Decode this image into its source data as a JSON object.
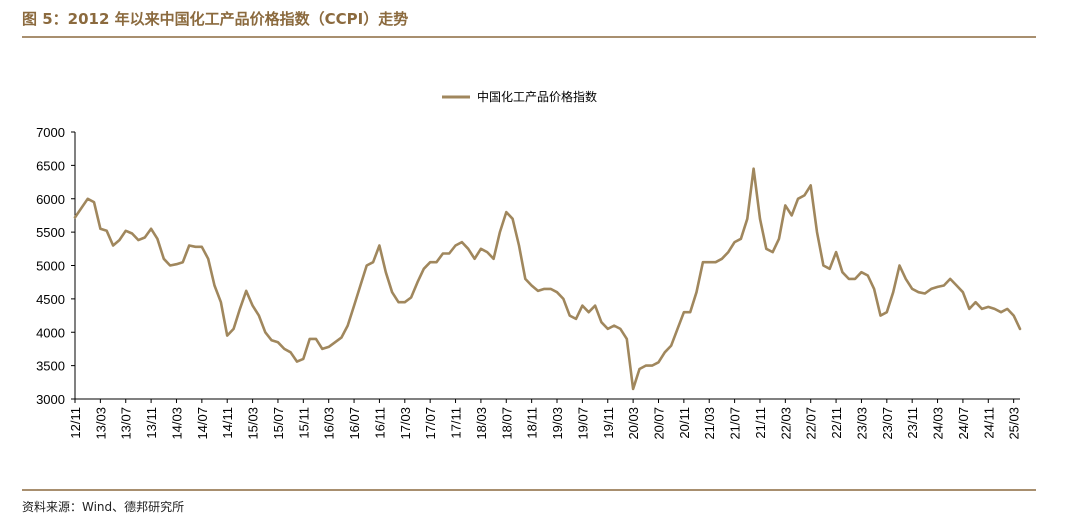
{
  "figure": {
    "title": "图 5：2012 年以来中国化工产品价格指数（CCPI）走势",
    "source": "资料来源：Wind、德邦研究所"
  },
  "colors": {
    "series": "#a0875d",
    "title": "#8b6a3e",
    "rule": "#a88f6f"
  },
  "chart_data": {
    "type": "line",
    "title": "",
    "xlabel": "",
    "ylabel": "",
    "ylim": [
      3000,
      7000
    ],
    "yticks": [
      3000,
      3500,
      4000,
      4500,
      5000,
      5500,
      6000,
      6500,
      7000
    ],
    "xticks": [
      "12/11",
      "13/03",
      "13/07",
      "13/11",
      "14/03",
      "14/07",
      "14/11",
      "15/03",
      "15/07",
      "15/11",
      "16/03",
      "16/07",
      "16/11",
      "17/03",
      "17/07",
      "17/11",
      "18/03",
      "18/07",
      "18/11",
      "19/03",
      "19/07",
      "19/11",
      "20/03",
      "20/07",
      "20/11",
      "21/03",
      "21/07",
      "21/11",
      "22/03",
      "22/07",
      "22/11",
      "23/03",
      "23/07",
      "23/11",
      "24/03",
      "24/07",
      "24/11",
      "25/03"
    ],
    "grid": false,
    "legend_position": "top-center",
    "series": [
      {
        "name": "中国化工产品价格指数",
        "x": [
          "2012-11",
          "2013-01",
          "2013-02",
          "2013-03",
          "2013-04",
          "2013-05",
          "2013-06",
          "2013-07",
          "2013-08",
          "2013-09",
          "2013-10",
          "2013-11",
          "2013-12",
          "2014-01",
          "2014-02",
          "2014-03",
          "2014-04",
          "2014-05",
          "2014-06",
          "2014-07",
          "2014-08",
          "2014-09",
          "2014-10",
          "2014-11",
          "2014-12",
          "2015-01",
          "2015-02",
          "2015-03",
          "2015-04",
          "2015-05",
          "2015-06",
          "2015-07",
          "2015-08",
          "2015-09",
          "2015-10",
          "2015-11",
          "2015-12",
          "2016-01",
          "2016-02",
          "2016-03",
          "2016-04",
          "2016-05",
          "2016-06",
          "2016-07",
          "2016-08",
          "2016-09",
          "2016-10",
          "2016-11",
          "2016-12",
          "2017-01",
          "2017-02",
          "2017-03",
          "2017-04",
          "2017-05",
          "2017-06",
          "2017-07",
          "2017-08",
          "2017-09",
          "2017-10",
          "2017-11",
          "2017-12",
          "2018-01",
          "2018-02",
          "2018-03",
          "2018-04",
          "2018-05",
          "2018-06",
          "2018-07",
          "2018-08",
          "2018-09",
          "2018-10",
          "2018-11",
          "2018-12",
          "2019-01",
          "2019-02",
          "2019-03",
          "2019-04",
          "2019-05",
          "2019-06",
          "2019-07",
          "2019-08",
          "2019-09",
          "2019-10",
          "2019-11",
          "2019-12",
          "2020-01",
          "2020-02",
          "2020-03",
          "2020-04",
          "2020-05",
          "2020-06",
          "2020-07",
          "2020-08",
          "2020-09",
          "2020-10",
          "2020-11",
          "2020-12",
          "2021-01",
          "2021-02",
          "2021-03",
          "2021-04",
          "2021-05",
          "2021-06",
          "2021-07",
          "2021-08",
          "2021-09",
          "2021-10",
          "2021-11",
          "2021-12",
          "2022-01",
          "2022-02",
          "2022-03",
          "2022-04",
          "2022-05",
          "2022-06",
          "2022-07",
          "2022-08",
          "2022-09",
          "2022-10",
          "2022-11",
          "2022-12",
          "2023-01",
          "2023-02",
          "2023-03",
          "2023-04",
          "2023-05",
          "2023-06",
          "2023-07",
          "2023-08",
          "2023-09",
          "2023-10",
          "2023-11",
          "2023-12",
          "2024-01",
          "2024-02",
          "2024-03",
          "2024-04",
          "2024-05",
          "2024-06",
          "2024-07",
          "2024-08",
          "2024-09",
          "2024-10",
          "2024-11",
          "2024-12",
          "2025-01",
          "2025-02",
          "2025-03",
          "2025-04"
        ],
        "values": [
          5720,
          6000,
          5950,
          5550,
          5520,
          5300,
          5380,
          5520,
          5480,
          5380,
          5420,
          5550,
          5400,
          5100,
          5000,
          5020,
          5050,
          5300,
          5280,
          5280,
          5100,
          4700,
          4450,
          3950,
          4050,
          4350,
          4620,
          4400,
          4250,
          4000,
          3880,
          3850,
          3750,
          3700,
          3560,
          3600,
          3900,
          3900,
          3750,
          3780,
          3850,
          3920,
          4100,
          4400,
          4700,
          5000,
          5050,
          5300,
          4900,
          4600,
          4450,
          4450,
          4520,
          4750,
          4950,
          5050,
          5050,
          5180,
          5180,
          5300,
          5350,
          5250,
          5100,
          5250,
          5200,
          5100,
          5500,
          5800,
          5700,
          5300,
          4800,
          4700,
          4620,
          4650,
          4650,
          4600,
          4500,
          4250,
          4200,
          4400,
          4300,
          4400,
          4150,
          4050,
          4100,
          4050,
          3900,
          3150,
          3450,
          3500,
          3500,
          3550,
          3700,
          3800,
          4050,
          4300,
          4300,
          4600,
          5050,
          5050,
          5050,
          5100,
          5200,
          5350,
          5400,
          5700,
          6450,
          5700,
          5250,
          5200,
          5400,
          5900,
          5750,
          6000,
          6050,
          6200,
          5500,
          5000,
          4950,
          5200,
          4900,
          4800,
          4800,
          4900,
          4850,
          4650,
          4250,
          4300,
          4600,
          5000,
          4800,
          4650,
          4600,
          4580,
          4650,
          4680,
          4700,
          4800,
          4700,
          4600,
          4350,
          4450,
          4350,
          4380,
          4350,
          4300,
          4350,
          4250,
          4050
        ]
      }
    ]
  }
}
